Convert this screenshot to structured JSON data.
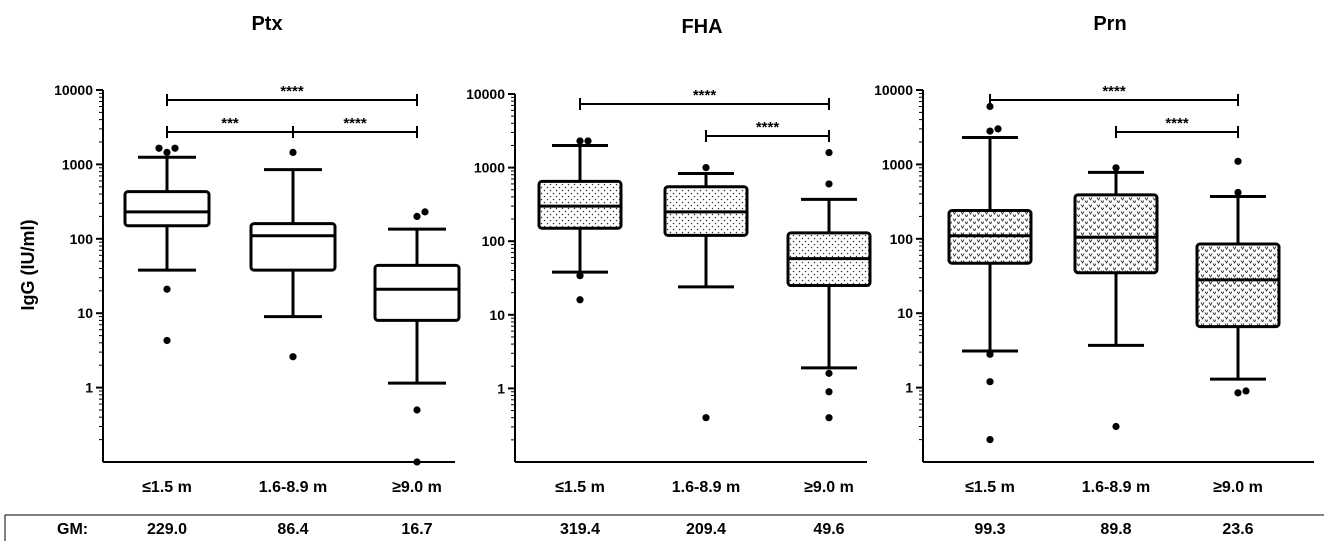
{
  "y_axis_label": "IgG (IU/ml)",
  "gm_label": "GM:",
  "chart_data": [
    {
      "type": "box",
      "title": "Ptx",
      "ylabel": "IgG (IU/ml)",
      "yscale": "log",
      "ylim": [
        0.1,
        10000
      ],
      "yticks": [
        1,
        10,
        100,
        1000,
        10000
      ],
      "fill": "none",
      "categories": [
        "≤1.5 m",
        "1.6-8.9 m",
        "≥9.0 m"
      ],
      "boxes": [
        {
          "q1": 150,
          "median": 230,
          "q3": 430,
          "whisker_low": 38,
          "whisker_high": 1250,
          "outliers": [
            4.3,
            21,
            1450,
            1650,
            1650
          ]
        },
        {
          "q1": 38,
          "median": 110,
          "q3": 160,
          "whisker_low": 9,
          "whisker_high": 850,
          "outliers": [
            2.6,
            1450
          ]
        },
        {
          "q1": 8,
          "median": 21,
          "q3": 44,
          "whisker_low": 1.15,
          "whisker_high": 135,
          "outliers": [
            0.5,
            0.1,
            200,
            230
          ]
        }
      ],
      "comparisons": [
        {
          "from": 0,
          "to": 2,
          "label": "****"
        },
        {
          "from": 0,
          "to": 1,
          "label": "***"
        },
        {
          "from": 1,
          "to": 2,
          "label": "****"
        }
      ],
      "gm": [
        "229.0",
        "86.4",
        "16.7"
      ]
    },
    {
      "type": "box",
      "title": "FHA",
      "yscale": "log",
      "ylim": [
        0.1,
        10000
      ],
      "yticks": [
        1,
        10,
        100,
        1000,
        10000
      ],
      "fill": "dots",
      "categories": [
        "≤1.5 m",
        "1.6-8.9 m",
        "≥9.0 m"
      ],
      "boxes": [
        {
          "q1": 150,
          "median": 300,
          "q3": 650,
          "whisker_low": 38,
          "whisker_high": 2000,
          "outliers": [
            16,
            34,
            2300,
            2300
          ]
        },
        {
          "q1": 120,
          "median": 250,
          "q3": 550,
          "whisker_low": 24,
          "whisker_high": 830,
          "outliers": [
            0.4,
            1000
          ]
        },
        {
          "q1": 25,
          "median": 58,
          "q3": 130,
          "whisker_low": 1.9,
          "whisker_high": 370,
          "outliers": [
            0.4,
            0.9,
            1.6,
            600,
            1600
          ]
        }
      ],
      "comparisons": [
        {
          "from": 0,
          "to": 2,
          "label": "****"
        },
        {
          "from": 1,
          "to": 2,
          "label": "****"
        }
      ],
      "gm": [
        "319.4",
        "209.4",
        "49.6"
      ]
    },
    {
      "type": "box",
      "title": "Prn",
      "yscale": "log",
      "ylim": [
        0.1,
        10000
      ],
      "yticks": [
        1,
        10,
        100,
        1000,
        10000
      ],
      "fill": "chevrons",
      "categories": [
        "≤1.5 m",
        "1.6-8.9 m",
        "≥9.0 m"
      ],
      "boxes": [
        {
          "q1": 47,
          "median": 110,
          "q3": 240,
          "whisker_low": 3.1,
          "whisker_high": 2300,
          "outliers": [
            0.2,
            1.2,
            2.8,
            2800,
            3000,
            6000
          ]
        },
        {
          "q1": 35,
          "median": 105,
          "q3": 390,
          "whisker_low": 3.7,
          "whisker_high": 780,
          "outliers": [
            0.3,
            900
          ]
        },
        {
          "q1": 6.6,
          "median": 28,
          "q3": 85,
          "whisker_low": 1.3,
          "whisker_high": 370,
          "outliers": [
            0.85,
            0.9,
            420,
            1100
          ]
        }
      ],
      "comparisons": [
        {
          "from": 0,
          "to": 2,
          "label": "****"
        },
        {
          "from": 1,
          "to": 2,
          "label": "****"
        }
      ],
      "gm": [
        "99.3",
        "89.8",
        "23.6"
      ]
    }
  ]
}
